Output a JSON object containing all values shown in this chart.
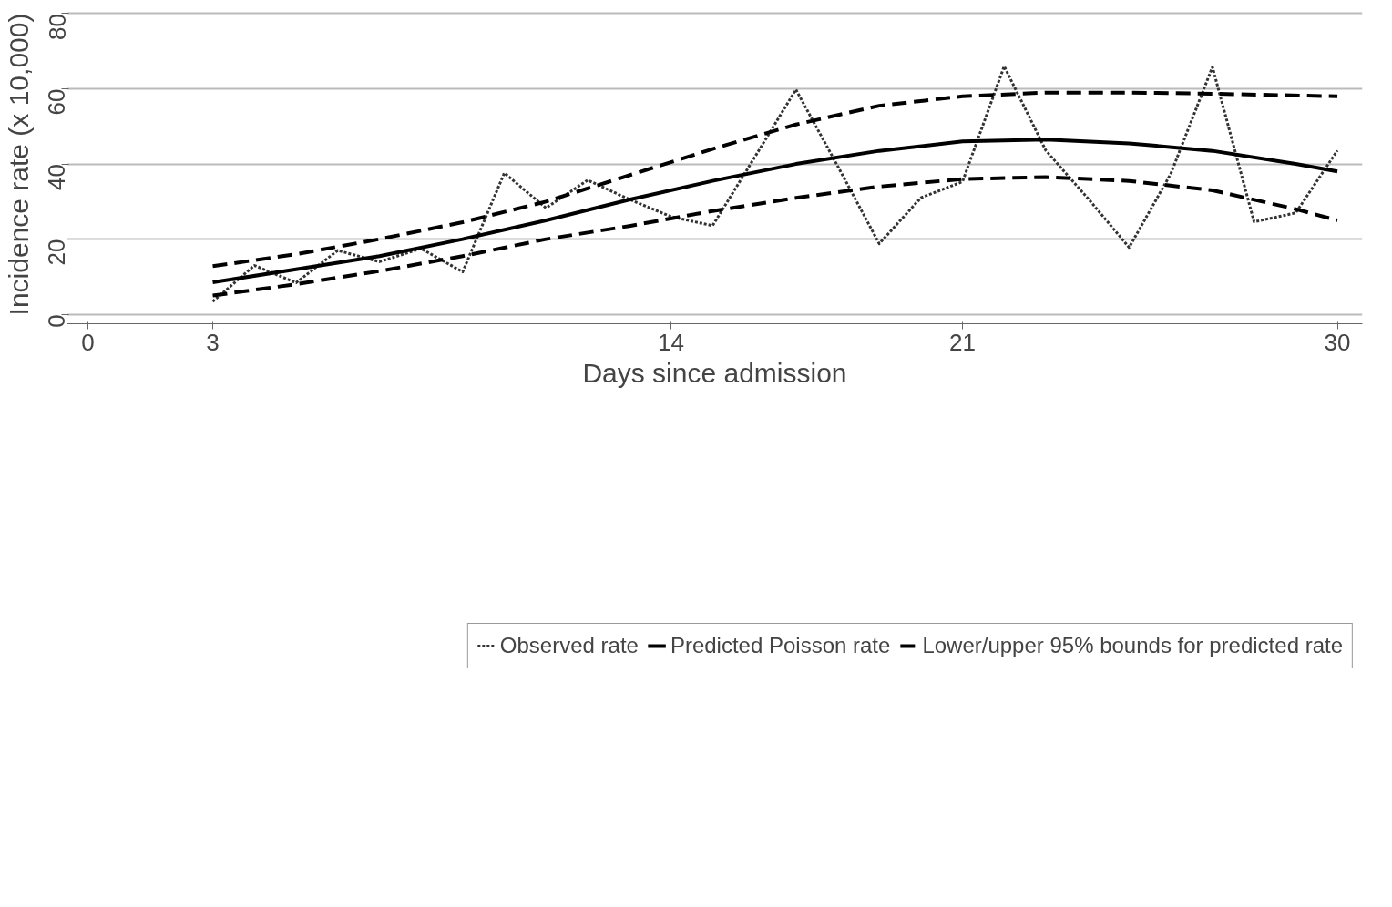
{
  "chart_data": {
    "type": "line",
    "xlabel": "Days since admission",
    "ylabel": "Incidence rate (x 10,000)",
    "xlim": [
      -0.5,
      30.6
    ],
    "ylim": [
      -2.5,
      82.3
    ],
    "xticks": [
      0,
      3,
      14,
      21,
      30
    ],
    "yticks": [
      0,
      20,
      40,
      60,
      80
    ],
    "grid": "y",
    "legend": "bottom",
    "marker": "none",
    "series": [
      {
        "name": "Observed rate",
        "color": "#333333",
        "line_style": "dotted",
        "x": [
          3,
          4,
          5,
          6,
          7,
          8,
          9,
          10,
          11,
          12,
          13,
          14,
          15,
          16,
          17,
          18,
          19,
          20,
          21,
          22,
          23,
          24,
          25,
          26,
          27,
          28,
          29,
          30
        ],
        "values": [
          3.4,
          13,
          8.4,
          17,
          14,
          17.5,
          11.3,
          37.6,
          28.3,
          35.7,
          30.6,
          26,
          23.6,
          41.6,
          59.8,
          39.5,
          18.8,
          31,
          35.3,
          66,
          43.6,
          31,
          17.8,
          37.4,
          65.8,
          24.6,
          27,
          43.6
        ]
      },
      {
        "name": "Predicted Poisson rate",
        "color": "#000000",
        "line_style": "solid",
        "x": [
          3,
          5,
          7,
          9,
          11,
          13,
          15,
          17,
          19,
          21,
          23,
          25,
          27,
          29,
          30
        ],
        "values": [
          8.5,
          12,
          15.5,
          20,
          25,
          30.5,
          35.5,
          40,
          43.5,
          46,
          46.5,
          45.5,
          43.5,
          40,
          38
        ]
      },
      {
        "name": "Lower/upper 95% bounds for predicted rate",
        "color": "#000000",
        "line_style": "dashed",
        "x": [
          3,
          5,
          7,
          9,
          11,
          13,
          15,
          17,
          19,
          21,
          23,
          25,
          27,
          30
        ],
        "values": [
          12.8,
          16,
          20,
          24.5,
          30,
          37,
          44,
          50.5,
          55.5,
          58,
          59,
          59,
          58.7,
          58
        ]
      },
      {
        "color": "#000000",
        "line_style": "dashed",
        "x": [
          3,
          5,
          7,
          9,
          11,
          13,
          15,
          17,
          19,
          21,
          23,
          25,
          27,
          29,
          30
        ],
        "values": [
          5,
          8,
          11.5,
          15.5,
          20,
          23.5,
          27.5,
          31,
          34,
          36,
          36.5,
          35.5,
          33,
          28,
          25
        ]
      }
    ]
  }
}
